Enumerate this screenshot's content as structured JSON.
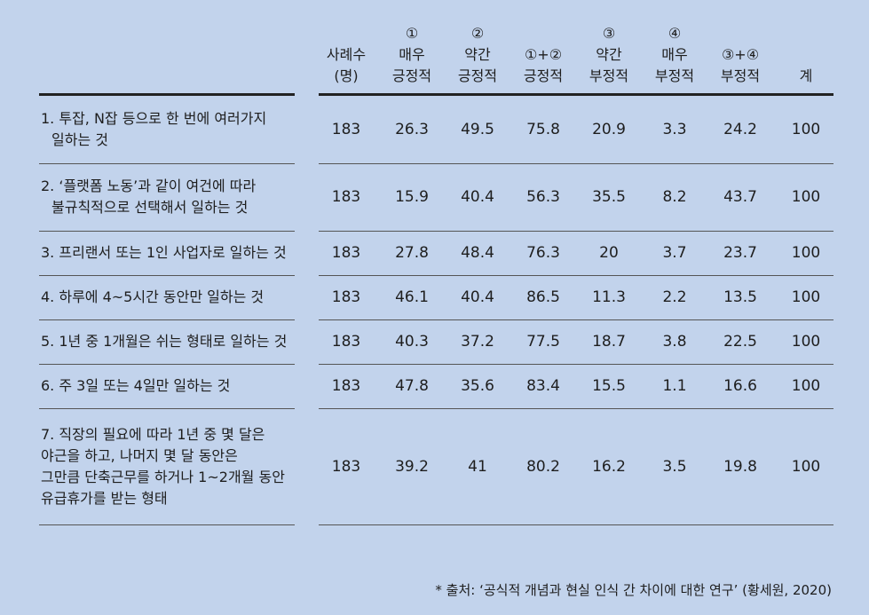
{
  "headers": [
    {
      "lines": [
        "사례수",
        "(명)"
      ]
    },
    {
      "lines": [
        "①",
        "매우",
        "긍정적"
      ]
    },
    {
      "lines": [
        "②",
        "약간",
        "긍정적"
      ]
    },
    {
      "lines": [
        "①+②",
        "긍정적"
      ]
    },
    {
      "lines": [
        "③",
        "약간",
        "부정적"
      ]
    },
    {
      "lines": [
        "④",
        "매우",
        "부정적"
      ]
    },
    {
      "lines": [
        "③+④",
        "부정적"
      ]
    },
    {
      "lines": [
        "계"
      ]
    }
  ],
  "rows": [
    {
      "label": [
        "1. 투잡, N잡 등으로 한 번에 여러가지",
        "일하는 것"
      ],
      "values": [
        "183",
        "26.3",
        "49.5",
        "75.8",
        "20.9",
        "3.3",
        "24.2",
        "100"
      ]
    },
    {
      "label": [
        "2. ‘플랫폼 노동’과 같이 여건에 따라",
        "불규칙적으로 선택해서 일하는 것"
      ],
      "values": [
        "183",
        "15.9",
        "40.4",
        "56.3",
        "35.5",
        "8.2",
        "43.7",
        "100"
      ]
    },
    {
      "label": [
        "3. 프리랜서 또는 1인 사업자로 일하는 것"
      ],
      "values": [
        "183",
        "27.8",
        "48.4",
        "76.3",
        "20",
        "3.7",
        "23.7",
        "100"
      ]
    },
    {
      "label": [
        "4. 하루에 4~5시간 동안만 일하는 것"
      ],
      "values": [
        "183",
        "46.1",
        "40.4",
        "86.5",
        "11.3",
        "2.2",
        "13.5",
        "100"
      ]
    },
    {
      "label": [
        "5. 1년 중 1개월은 쉬는 형태로 일하는 것"
      ],
      "values": [
        "183",
        "40.3",
        "37.2",
        "77.5",
        "18.7",
        "3.8",
        "22.5",
        "100"
      ]
    },
    {
      "label": [
        "6. 주 3일 또는 4일만 일하는 것"
      ],
      "values": [
        "183",
        "47.8",
        "35.6",
        "83.4",
        "15.5",
        "1.1",
        "16.6",
        "100"
      ]
    },
    {
      "label": [
        "7. 직장의 필요에 따라 1년 중 몇 달은",
        "야근을 하고, 나머지 몇 달 동안은",
        "그만큼 단축근무를 하거나 1~2개월 동안",
        "유급휴가를 받는 형태"
      ],
      "values": [
        "183",
        "39.2",
        "41",
        "80.2",
        "16.2",
        "3.5",
        "19.8",
        "100"
      ]
    }
  ],
  "source": "* 출처: ‘공식적 개념과 현실 인식 간 차이에 대한 연구’ (황세원, 2020)"
}
